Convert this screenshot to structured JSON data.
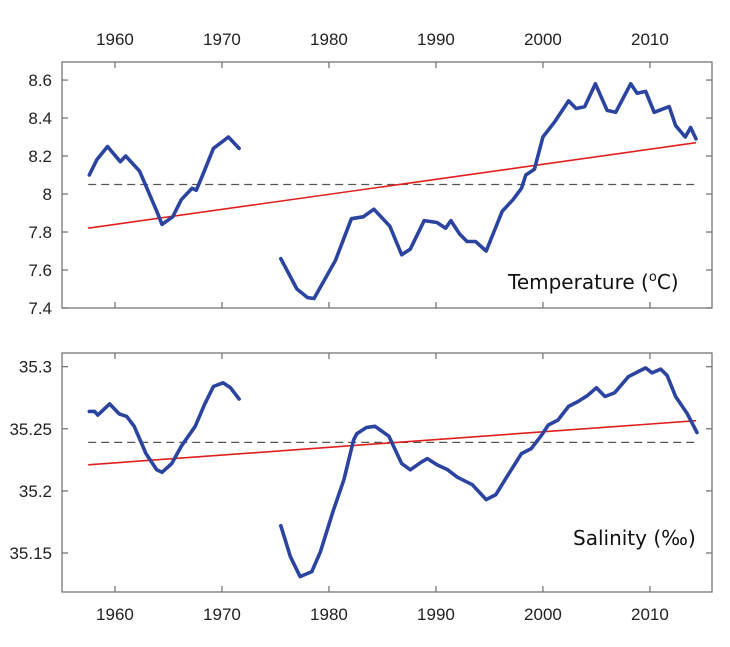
{
  "chart_data": [
    {
      "type": "line",
      "title": "",
      "annotation": "Temperature (",
      "annotation_sup": "o",
      "annotation_tail": "C)",
      "xlabel": "",
      "ylabel": "",
      "xlim": [
        1955.05,
        2015.8
      ],
      "ylim": [
        7.4,
        8.695
      ],
      "xticks": [
        1960,
        1970,
        1980,
        1990,
        2000,
        2010
      ],
      "xtick_labels": [
        "1960",
        "1970",
        "1980",
        "1990",
        "2000",
        "2010"
      ],
      "xtick_label_position": "top",
      "yticks": [
        7.4,
        7.6,
        7.8,
        8,
        8.2,
        8.4,
        8.6
      ],
      "ytick_labels": [
        "7.4",
        "7.6",
        "7.8",
        "8",
        "8.2",
        "8.4",
        "8.6"
      ],
      "grid": false,
      "colors": {
        "series": "#2a44a0",
        "trend": "#e0201e",
        "mean": "#555555"
      },
      "series": [
        {
          "name": "Temperature",
          "segments": [
            [
              [
                1957.6,
                8.1
              ],
              [
                1958.3,
                8.18
              ],
              [
                1959.3,
                8.25
              ],
              [
                1960.5,
                8.17
              ],
              [
                1961.0,
                8.2
              ],
              [
                1962.3,
                8.12
              ],
              [
                1963.9,
                7.91
              ],
              [
                1964.4,
                7.84
              ],
              [
                1965.4,
                7.88
              ],
              [
                1966.2,
                7.97
              ],
              [
                1967.2,
                8.03
              ],
              [
                1967.6,
                8.02
              ],
              [
                1968.2,
                8.1
              ],
              [
                1969.2,
                8.24
              ],
              [
                1970.6,
                8.3
              ],
              [
                1971.6,
                8.24
              ]
            ],
            [
              [
                1975.5,
                7.66
              ],
              [
                1977.0,
                7.5
              ],
              [
                1978.0,
                7.455
              ],
              [
                1978.6,
                7.45
              ],
              [
                1979.6,
                7.55
              ],
              [
                1980.6,
                7.65
              ],
              [
                1982.1,
                7.87
              ],
              [
                1983.2,
                7.88
              ],
              [
                1984.2,
                7.92
              ],
              [
                1985.7,
                7.83
              ],
              [
                1986.8,
                7.68
              ],
              [
                1987.6,
                7.71
              ],
              [
                1988.9,
                7.86
              ],
              [
                1990.1,
                7.85
              ],
              [
                1990.9,
                7.82
              ],
              [
                1991.4,
                7.86
              ],
              [
                1992.2,
                7.79
              ],
              [
                1992.9,
                7.75
              ],
              [
                1993.7,
                7.75
              ],
              [
                1994.7,
                7.7
              ],
              [
                1996.2,
                7.91
              ],
              [
                1997.2,
                7.97
              ],
              [
                1998.0,
                8.03
              ],
              [
                1998.4,
                8.1
              ],
              [
                1999.2,
                8.13
              ],
              [
                2000.0,
                8.3
              ],
              [
                2001.1,
                8.38
              ],
              [
                2002.4,
                8.49
              ],
              [
                2003.1,
                8.45
              ],
              [
                2003.9,
                8.46
              ],
              [
                2004.9,
                8.58
              ],
              [
                2006.0,
                8.44
              ],
              [
                2006.8,
                8.43
              ],
              [
                2008.2,
                8.58
              ],
              [
                2008.8,
                8.53
              ],
              [
                2009.6,
                8.54
              ],
              [
                2010.4,
                8.43
              ],
              [
                2011.8,
                8.46
              ],
              [
                2012.4,
                8.36
              ],
              [
                2013.3,
                8.3
              ],
              [
                2013.8,
                8.35
              ],
              [
                2014.3,
                8.29
              ]
            ]
          ]
        },
        {
          "name": "Linear trend",
          "points": [
            [
              1957.5,
              7.82
            ],
            [
              2014.3,
              8.27
            ]
          ]
        },
        {
          "name": "Mean",
          "points": [
            [
              1957.5,
              8.05
            ],
            [
              2014.3,
              8.05
            ]
          ]
        }
      ]
    },
    {
      "type": "line",
      "title": "",
      "annotation": "Salinity (‰)",
      "xlabel": "",
      "ylabel": "",
      "xlim": [
        1955.05,
        2015.8
      ],
      "ylim": [
        35.1186,
        35.311
      ],
      "xticks": [
        1960,
        1970,
        1980,
        1990,
        2000,
        2010
      ],
      "xtick_labels": [
        "1960",
        "1970",
        "1980",
        "1990",
        "2000",
        "2010"
      ],
      "xtick_label_position": "bottom",
      "yticks": [
        35.15,
        35.2,
        35.25,
        35.3
      ],
      "ytick_labels": [
        "35.15",
        "35.2",
        "35.25",
        "35.3"
      ],
      "grid": false,
      "colors": {
        "series": "#2a44a0",
        "trend": "#e0201e",
        "mean": "#555555"
      },
      "series": [
        {
          "name": "Salinity",
          "segments": [
            [
              [
                1957.6,
                35.264
              ],
              [
                1958.1,
                35.264
              ],
              [
                1958.4,
                35.261
              ],
              [
                1959.5,
                35.27
              ],
              [
                1960.4,
                35.262
              ],
              [
                1961.1,
                35.26
              ],
              [
                1961.8,
                35.252
              ],
              [
                1962.9,
                35.23
              ],
              [
                1963.9,
                35.217
              ],
              [
                1964.4,
                35.215
              ],
              [
                1965.3,
                35.222
              ],
              [
                1966.2,
                35.236
              ],
              [
                1967.5,
                35.252
              ],
              [
                1968.4,
                35.27
              ],
              [
                1969.2,
                35.284
              ],
              [
                1970.1,
                35.287
              ],
              [
                1970.8,
                35.283
              ],
              [
                1971.6,
                35.274
              ]
            ],
            [
              [
                1975.5,
                35.172
              ],
              [
                1976.4,
                35.147
              ],
              [
                1977.3,
                35.131
              ],
              [
                1978.4,
                35.135
              ],
              [
                1979.2,
                35.151
              ],
              [
                1980.4,
                35.184
              ],
              [
                1981.4,
                35.209
              ],
              [
                1982.3,
                35.241
              ],
              [
                1982.6,
                35.246
              ],
              [
                1983.5,
                35.251
              ],
              [
                1984.3,
                35.252
              ],
              [
                1985.6,
                35.244
              ],
              [
                1986.8,
                35.222
              ],
              [
                1987.6,
                35.217
              ],
              [
                1988.6,
                35.223
              ],
              [
                1989.2,
                35.226
              ],
              [
                1990.1,
                35.221
              ],
              [
                1991.1,
                35.217
              ],
              [
                1992.0,
                35.211
              ],
              [
                1993.4,
                35.205
              ],
              [
                1994.7,
                35.193
              ],
              [
                1995.6,
                35.197
              ],
              [
                1996.6,
                35.211
              ],
              [
                1998.0,
                35.23
              ],
              [
                1998.9,
                35.234
              ],
              [
                1999.8,
                35.244
              ],
              [
                2000.5,
                35.253
              ],
              [
                2001.4,
                35.257
              ],
              [
                2002.4,
                35.268
              ],
              [
                2003.3,
                35.272
              ],
              [
                2004.2,
                35.277
              ],
              [
                2005.0,
                35.283
              ],
              [
                2005.8,
                35.276
              ],
              [
                2006.7,
                35.279
              ],
              [
                2008.0,
                35.292
              ],
              [
                2008.9,
                35.296
              ],
              [
                2009.6,
                35.299
              ],
              [
                2010.2,
                35.295
              ],
              [
                2011.0,
                35.298
              ],
              [
                2011.6,
                35.293
              ],
              [
                2012.4,
                35.276
              ],
              [
                2013.5,
                35.262
              ],
              [
                2014.4,
                35.247
              ]
            ]
          ]
        },
        {
          "name": "Linear trend",
          "points": [
            [
              1957.5,
              35.221
            ],
            [
              2014.3,
              35.2565
            ]
          ]
        },
        {
          "name": "Mean",
          "points": [
            [
              1957.5,
              35.239
            ],
            [
              2014.3,
              35.239
            ]
          ]
        }
      ]
    }
  ]
}
